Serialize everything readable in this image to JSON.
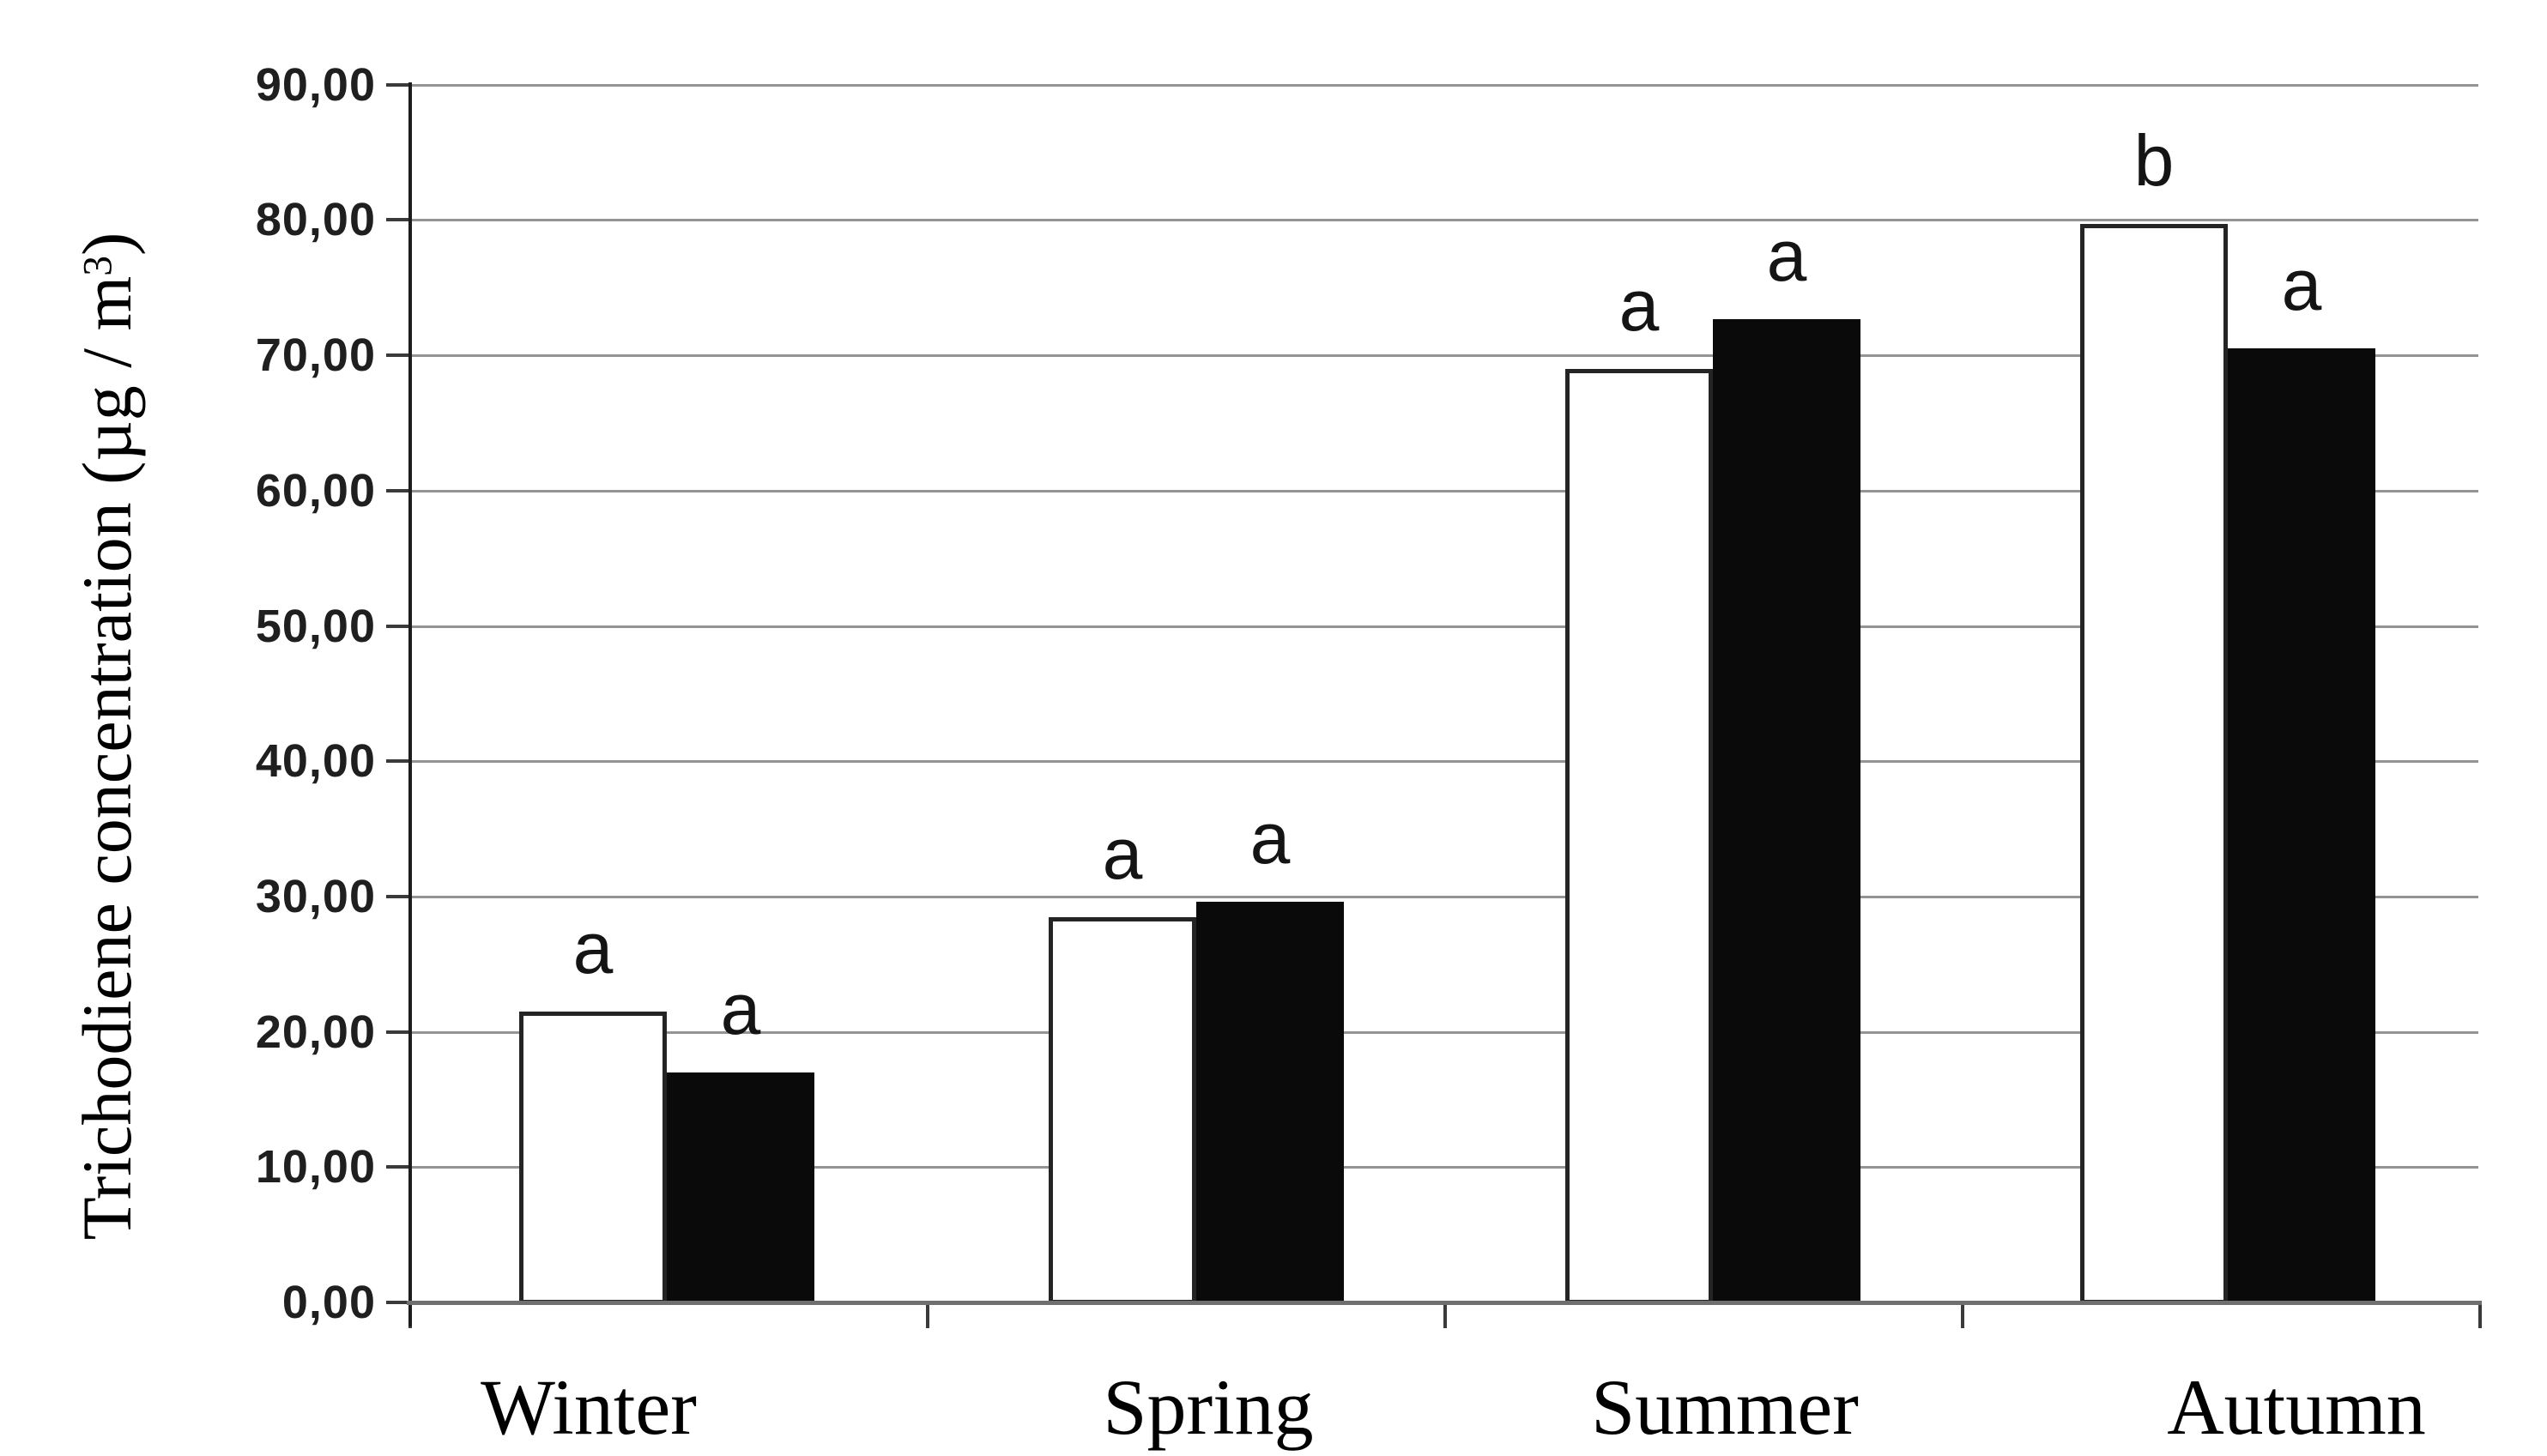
{
  "chart_data": {
    "type": "bar",
    "title": "",
    "categories": [
      "Winter",
      "Spring",
      "Summer",
      "Autumn"
    ],
    "series": [
      {
        "name": "open-bars",
        "fill": "#ffffff",
        "border": "#242424",
        "values": [
          21.5,
          28.5,
          69.0,
          79.7
        ],
        "sig_labels": [
          "a",
          "a",
          "a",
          "b"
        ]
      },
      {
        "name": "filled-bars",
        "fill": "#0a0a0a",
        "border": "#0a0a0a",
        "values": [
          17.0,
          29.6,
          72.7,
          70.5
        ],
        "sig_labels": [
          "a",
          "a",
          "a",
          "a"
        ]
      }
    ],
    "ylabel": {
      "main": "Trichodiene concentration (µg / m",
      "sup": "3",
      "close": ")"
    },
    "xlabel": "",
    "y_ticks": [
      "0,00",
      "10,00",
      "20,00",
      "30,00",
      "40,00",
      "50,00",
      "60,00",
      "70,00",
      "80,00",
      "90,00"
    ],
    "ylim": [
      0,
      90
    ],
    "y_step": 10,
    "grid": true,
    "legend_position": "none"
  },
  "colors": {
    "background": "#ffffff",
    "gridline": "#949494",
    "y_axis": "#1d1d1d",
    "x_axis": "#6f6f6f",
    "tick": "#3a3a3a",
    "text": "#1f1f1f"
  }
}
